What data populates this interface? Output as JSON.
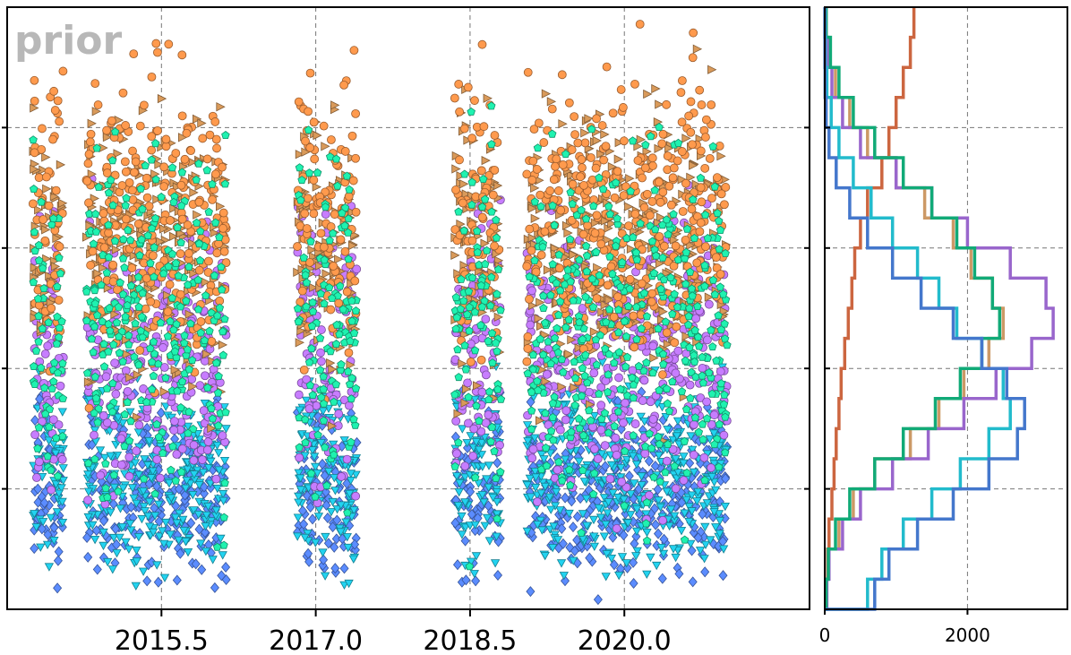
{
  "watermark": "prior",
  "chart_data": [
    {
      "type": "scatter",
      "title": "",
      "xlabel": "",
      "ylabel": "",
      "xlim": [
        2014.0,
        2021.8
      ],
      "ylim": [
        0,
        1
      ],
      "xticks": [
        2015.5,
        2017.0,
        2018.5,
        2020.0
      ],
      "xtick_labels": [
        "2015.5",
        "2017.0",
        "2018.5",
        "2020.0"
      ],
      "yticks": [
        0.2,
        0.4,
        0.6,
        0.8
      ],
      "grid": true,
      "observation_windows": [
        [
          2014.25,
          2014.55
        ],
        [
          2014.77,
          2016.13
        ],
        [
          2016.82,
          2017.4
        ],
        [
          2018.35,
          2018.8
        ],
        [
          2019.05,
          2021.0
        ]
      ],
      "series": [
        {
          "color": "#ff9a4d",
          "marker": "circle",
          "band": [
            0.3,
            1.0
          ]
        },
        {
          "color": "#d99a5a",
          "marker": "triangle-right",
          "band": [
            0.25,
            0.95
          ]
        },
        {
          "color": "#c77dff",
          "marker": "circle",
          "band": [
            0.1,
            0.75
          ]
        },
        {
          "color": "#1ff2b0",
          "marker": "pentagon",
          "band": [
            0.05,
            0.9
          ]
        },
        {
          "color": "#5b8cff",
          "marker": "diamond",
          "band": [
            0.0,
            0.4
          ]
        },
        {
          "color": "#22d3f0",
          "marker": "triangle-down",
          "band": [
            0.0,
            0.45
          ]
        }
      ]
    },
    {
      "type": "histogram",
      "orientation": "horizontal",
      "xlim": [
        0,
        3400
      ],
      "xticks": [
        0,
        2000
      ],
      "xtick_labels": [
        "0",
        "2000"
      ],
      "ylim": [
        0,
        1
      ],
      "grid": true,
      "bin_edges": [
        0,
        0.05,
        0.1,
        0.15,
        0.2,
        0.25,
        0.3,
        0.35,
        0.4,
        0.45,
        0.5,
        0.55,
        0.6,
        0.65,
        0.7,
        0.75,
        0.8,
        0.85,
        0.9,
        0.95,
        1.0
      ],
      "series": [
        {
          "color": "#cc6640",
          "counts": [
            20,
            40,
            60,
            100,
            130,
            160,
            200,
            230,
            280,
            330,
            380,
            420,
            500,
            600,
            800,
            900,
            1000,
            1100,
            1200,
            1250
          ]
        },
        {
          "color": "#cc9966",
          "counts": [
            20,
            50,
            200,
            400,
            700,
            1200,
            1600,
            1950,
            2300,
            2500,
            2350,
            2050,
            1800,
            1400,
            1000,
            600,
            350,
            150,
            50,
            20
          ]
        },
        {
          "color": "#9966cc",
          "counts": [
            30,
            60,
            250,
            500,
            950,
            1450,
            1950,
            2400,
            2900,
            3200,
            3100,
            2600,
            2000,
            1500,
            1000,
            500,
            250,
            100,
            40,
            20
          ]
        },
        {
          "color": "#11aa77",
          "counts": [
            20,
            50,
            150,
            350,
            700,
            1100,
            1550,
            1900,
            2200,
            2450,
            2350,
            2100,
            1850,
            1500,
            1100,
            700,
            400,
            200,
            80,
            20
          ]
        },
        {
          "color": "#22bbcc",
          "counts": [
            600,
            800,
            1100,
            1500,
            1900,
            2300,
            2600,
            2500,
            2200,
            1850,
            1600,
            1300,
            950,
            650,
            400,
            200,
            90,
            30,
            10,
            5
          ]
        },
        {
          "color": "#4477cc",
          "counts": [
            700,
            900,
            1300,
            1800,
            2300,
            2700,
            2800,
            2550,
            2200,
            1800,
            1350,
            950,
            600,
            350,
            160,
            60,
            20,
            5,
            2,
            1
          ]
        }
      ]
    }
  ]
}
